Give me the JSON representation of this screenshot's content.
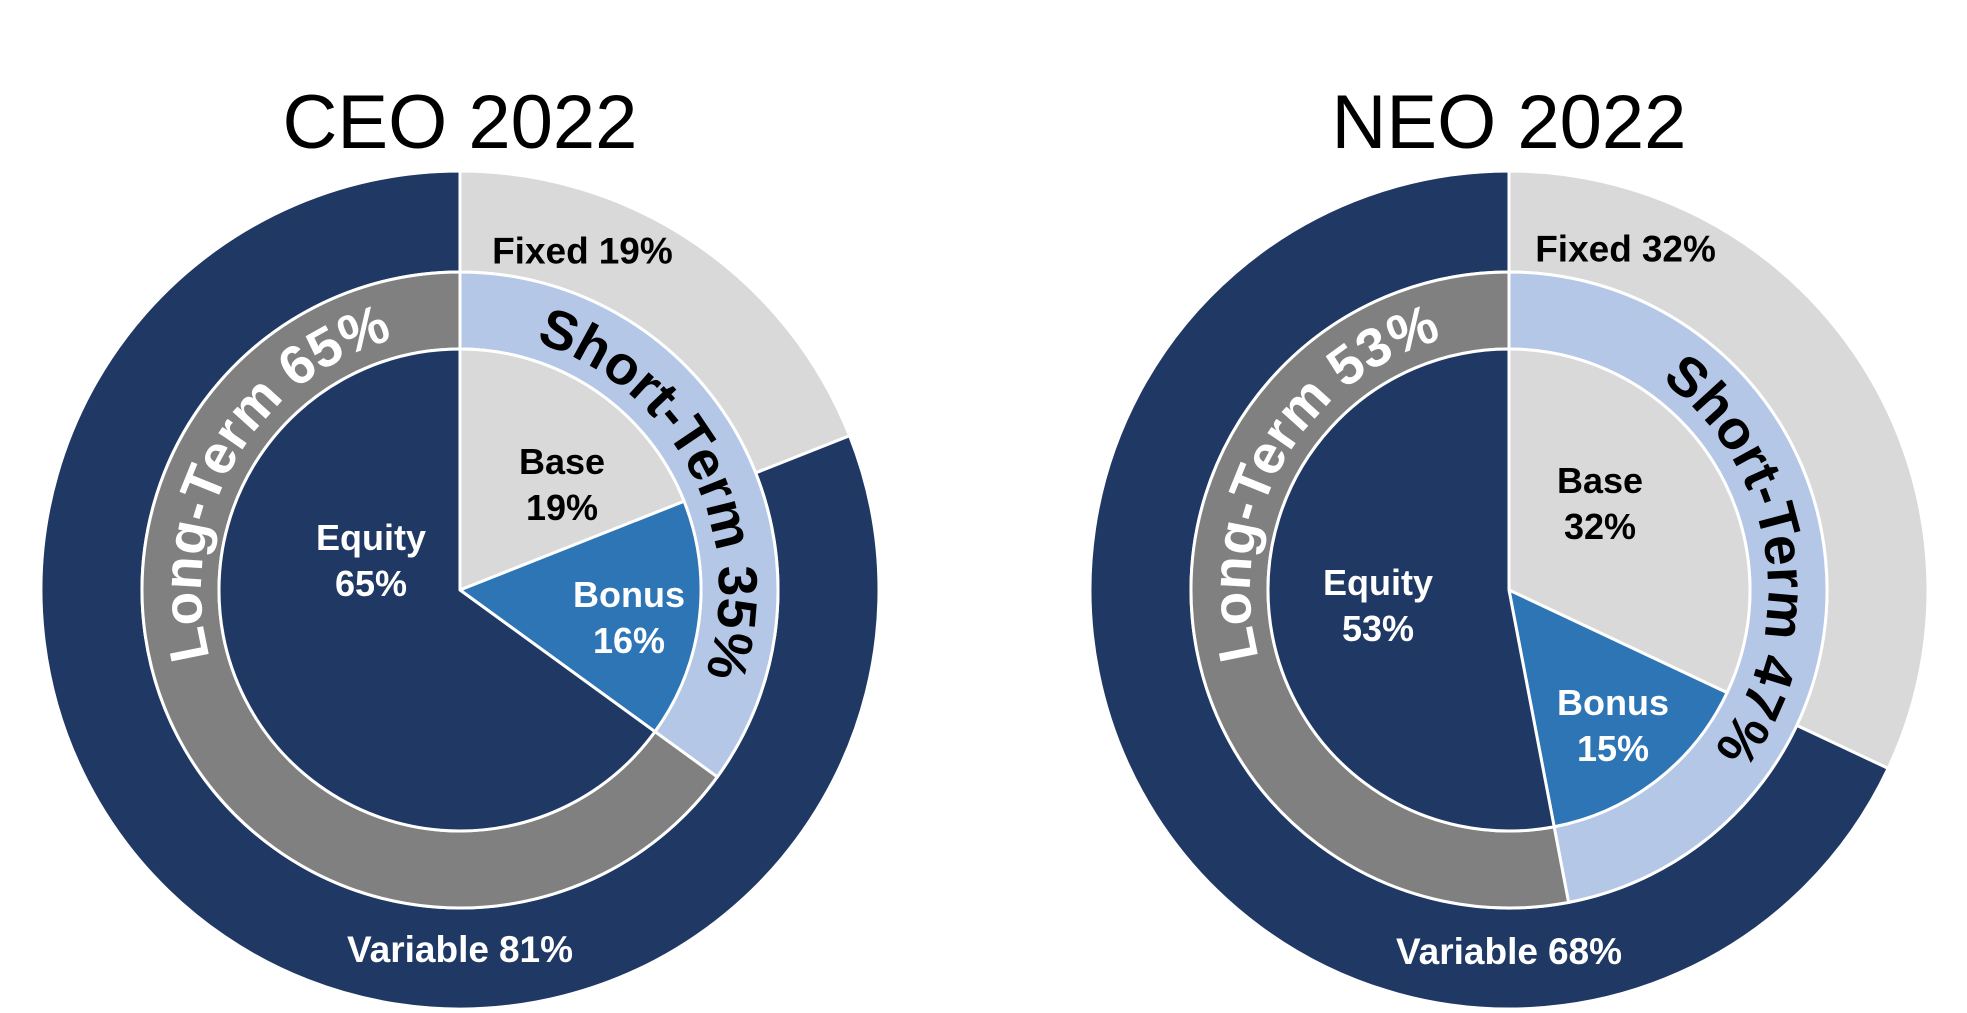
{
  "chart_data": [
    {
      "type": "pie",
      "title": "CEO 2022",
      "series": [
        {
          "categories": [
            "Fixed",
            "Variable"
          ],
          "values": [
            19,
            81
          ],
          "value_labels": [
            "19%",
            "81%"
          ],
          "colors": [
            "#d9d9d9",
            "#203864"
          ]
        },
        {
          "categories": [
            "Short-Term",
            "Long-Term"
          ],
          "values": [
            35,
            65
          ],
          "value_labels": [
            "35%",
            "65%"
          ],
          "colors": [
            "#b4c7e7",
            "#808080"
          ]
        },
        {
          "categories": [
            "Base",
            "Bonus",
            "Equity"
          ],
          "values": [
            19,
            16,
            65
          ],
          "value_labels": [
            "19%",
            "16%",
            "65%"
          ],
          "colors": [
            "#d9d9d9",
            "#2e75b6",
            "#203864"
          ]
        }
      ]
    },
    {
      "type": "pie",
      "title": "NEO 2022",
      "series": [
        {
          "categories": [
            "Fixed",
            "Variable"
          ],
          "values": [
            32,
            68
          ],
          "value_labels": [
            "32%",
            "68%"
          ],
          "colors": [
            "#d9d9d9",
            "#203864"
          ]
        },
        {
          "categories": [
            "Short-Term",
            "Long-Term"
          ],
          "values": [
            47,
            53
          ],
          "value_labels": [
            "47%",
            "53%"
          ],
          "colors": [
            "#b4c7e7",
            "#808080"
          ]
        },
        {
          "categories": [
            "Base",
            "Bonus",
            "Equity"
          ],
          "values": [
            32,
            15,
            53
          ],
          "value_labels": [
            "32%",
            "15%",
            "53%"
          ],
          "colors": [
            "#d9d9d9",
            "#2e75b6",
            "#203864"
          ]
        }
      ]
    }
  ]
}
